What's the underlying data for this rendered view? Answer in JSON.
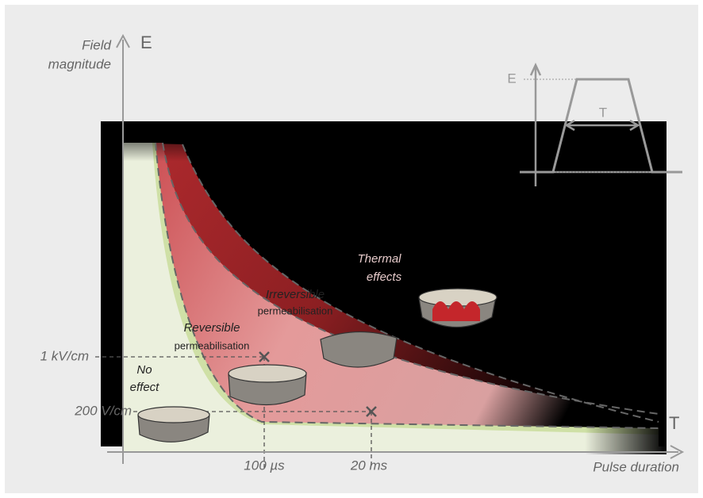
{
  "axes": {
    "y_label": [
      "Field",
      "magnitude"
    ],
    "y_symbol": "E",
    "x_symbol": "T",
    "x_label": "Pulse duration"
  },
  "guides": {
    "y1": "1 kV/cm",
    "y2": "200 V/cm",
    "x1": "100 µs",
    "x2": "20 ms"
  },
  "regions": {
    "no_effect": [
      "No",
      "effect"
    ],
    "reversible": [
      "Reversible",
      "permeabilisation"
    ],
    "irreversible": [
      "Irreversible",
      "permeabilisation"
    ],
    "thermal": [
      "Thermal",
      "effects"
    ]
  },
  "inset": {
    "amplitude": "E",
    "duration": "T"
  }
}
